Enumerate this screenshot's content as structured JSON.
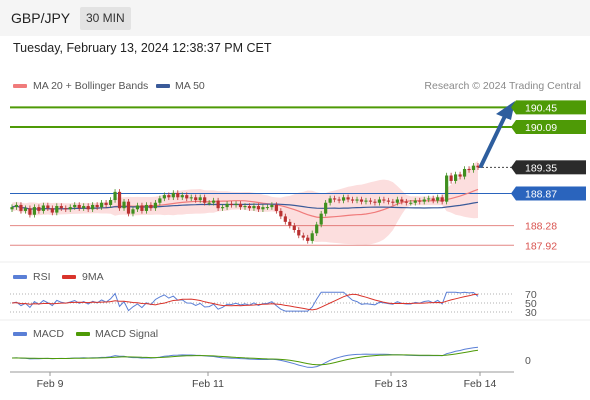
{
  "header": {
    "pair": "GBP/JPY",
    "timeframe": "30 MIN",
    "datetime": "Tuesday, February 13, 2024 12:38:37 PM CET"
  },
  "legend": {
    "ma20": "MA 20 + Bollinger Bands",
    "ma50": "MA 50",
    "credit": "Research © 2024 Trading Central"
  },
  "levels": [
    {
      "value": 190.45,
      "label": "190.45",
      "kind": "resistance-2",
      "color": "#4e9a06"
    },
    {
      "value": 190.09,
      "label": "190.09",
      "kind": "resistance-1",
      "color": "#4e9a06"
    },
    {
      "value": 189.35,
      "label": "189.35",
      "kind": "current",
      "color": "#2b2b2b"
    },
    {
      "value": 188.87,
      "label": "188.87",
      "kind": "pivot",
      "color": "#2a64bd"
    },
    {
      "value": 188.28,
      "label": "188.28",
      "kind": "support-1",
      "color": "#d9534f"
    },
    {
      "value": 187.92,
      "label": "187.92",
      "kind": "support-2",
      "color": "#d9534f"
    }
  ],
  "rsi": {
    "label": "RSI",
    "signal_label": "9MA",
    "levels": [
      "70",
      "50",
      "30"
    ]
  },
  "macd": {
    "label": "MACD",
    "signal_label": "MACD Signal",
    "zero": "0"
  },
  "xaxis": [
    "Feb 9",
    "Feb 11",
    "Feb 13",
    "Feb 14"
  ],
  "colors": {
    "bull": "#3f8f1f",
    "bear": "#b93131",
    "ma20": "#f07b7b",
    "ma50": "#3a5a99",
    "band": "#fbd6d6",
    "rsi": "#5a7fd6",
    "rsi_ma": "#d9342b",
    "macd": "#5a7fd6",
    "macd_signal": "#4e9a06",
    "arrow": "#2e5e9e"
  },
  "chart_data": {
    "type": "candlestick",
    "series": [
      {
        "name": "GBP/JPY",
        "close": [
          188.62,
          188.66,
          188.55,
          188.6,
          188.48,
          188.62,
          188.55,
          188.65,
          188.6,
          188.52,
          188.64,
          188.6,
          188.58,
          188.62,
          188.66,
          188.6,
          188.64,
          188.58,
          188.66,
          188.62,
          188.7,
          188.66,
          188.75,
          188.9,
          188.6,
          188.72,
          188.5,
          188.58,
          188.65,
          188.55,
          188.66,
          188.6,
          188.7,
          188.78,
          188.84,
          188.8,
          188.88,
          188.8,
          188.84,
          188.78,
          188.8,
          188.75,
          188.8,
          188.7,
          188.7,
          188.74,
          188.6,
          188.62,
          188.68,
          188.66,
          188.68,
          188.62,
          188.64,
          188.6,
          188.64,
          188.58,
          188.62,
          188.62,
          188.66,
          188.55,
          188.45,
          188.35,
          188.28,
          188.2,
          188.1,
          188.06,
          188.0,
          188.14,
          188.3,
          188.5,
          188.7,
          188.78,
          188.76,
          188.74,
          188.8,
          188.76,
          188.74,
          188.76,
          188.72,
          188.74,
          188.72,
          188.7,
          188.76,
          188.74,
          188.72,
          188.7,
          188.76,
          188.72,
          188.7,
          188.7,
          188.74,
          188.72,
          188.76,
          188.78,
          188.74,
          188.8,
          188.72,
          189.2,
          189.1,
          189.22,
          189.18,
          189.32,
          189.3,
          189.38,
          189.35
        ]
      }
    ],
    "levels": [
      190.45,
      190.09,
      189.35,
      188.87,
      188.28,
      187.92
    ],
    "ylim": [
      187.55,
      190.65
    ],
    "xlabels": [
      "Feb 9",
      "Feb 11",
      "Feb 13",
      "Feb 14"
    ],
    "indicators": [
      "MA 20 + Bollinger Bands",
      "MA 50",
      "RSI",
      "9MA",
      "MACD",
      "MACD Signal"
    ],
    "rsi_levels": [
      70,
      50,
      30
    ],
    "macd_zero": 0
  }
}
